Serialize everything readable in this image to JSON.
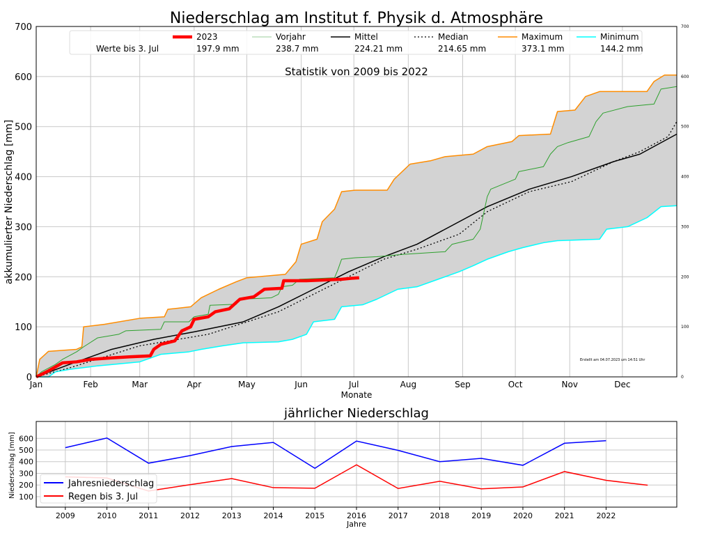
{
  "chart_data": [
    {
      "type": "line",
      "title": "Niederschlag am Institut f. Physik d. Atmosphäre",
      "subtitle": "Statistik von 2009 bis 2022",
      "xlabel": "Monate",
      "ylabel": "akkumulierter Niederschlag [mm]",
      "xlim": [
        0,
        365
      ],
      "ylim": [
        0,
        700
      ],
      "yticks": [
        0,
        100,
        200,
        300,
        400,
        500,
        600,
        700
      ],
      "xticks": [
        {
          "day": 0,
          "label": "Jan"
        },
        {
          "day": 31,
          "label": "Feb"
        },
        {
          "day": 59,
          "label": "Mar"
        },
        {
          "day": 90,
          "label": "Apr"
        },
        {
          "day": 120,
          "label": "May"
        },
        {
          "day": 151,
          "label": "Jun"
        },
        {
          "day": 181,
          "label": "Jul"
        },
        {
          "day": 212,
          "label": "Aug"
        },
        {
          "day": 243,
          "label": "Sep"
        },
        {
          "day": 273,
          "label": "Oct"
        },
        {
          "day": 304,
          "label": "Nov"
        },
        {
          "day": 334,
          "label": "Dec"
        }
      ],
      "grid": true,
      "legend": {
        "placement": "top",
        "row_label": "Werte bis  3. Jul",
        "entries": [
          {
            "name": "2023",
            "value": "197.9 mm"
          },
          {
            "name": "Vorjahr",
            "value": "238.7 mm"
          },
          {
            "name": "Mittel",
            "value": "224.21 mm"
          },
          {
            "name": "Median",
            "value": "214.65 mm"
          },
          {
            "name": "Maximum",
            "value": "373.1 mm"
          },
          {
            "name": "Minimum",
            "value": "144.2 mm"
          }
        ]
      },
      "annotation": "Erstellt am 04.07.2023 um 14:51 Uhr",
      "series": [
        {
          "name": "Maximum",
          "color": "#ff8c00",
          "width": 1.5,
          "points": [
            [
              0,
              0
            ],
            [
              2,
              35
            ],
            [
              7,
              51
            ],
            [
              23,
              55
            ],
            [
              26,
              60
            ],
            [
              27,
              100
            ],
            [
              39,
              105
            ],
            [
              59,
              117
            ],
            [
              73,
              120
            ],
            [
              75,
              135
            ],
            [
              88,
              140
            ],
            [
              94,
              158
            ],
            [
              104,
              175
            ],
            [
              114,
              190
            ],
            [
              120,
              198
            ],
            [
              142,
              205
            ],
            [
              148,
              230
            ],
            [
              151,
              265
            ],
            [
              160,
              275
            ],
            [
              163,
              310
            ],
            [
              170,
              335
            ],
            [
              174,
              370
            ],
            [
              182,
              373
            ],
            [
              200,
              373
            ],
            [
              204,
              395
            ],
            [
              213,
              425
            ],
            [
              225,
              432
            ],
            [
              233,
              440
            ],
            [
              249,
              445
            ],
            [
              257,
              460
            ],
            [
              271,
              470
            ],
            [
              275,
              482
            ],
            [
              293,
              485
            ],
            [
              297,
              530
            ],
            [
              307,
              533
            ],
            [
              313,
              560
            ],
            [
              321,
              570
            ],
            [
              348,
              570
            ],
            [
              352,
              590
            ],
            [
              358,
              603
            ],
            [
              365,
              603
            ]
          ]
        },
        {
          "name": "Minimum",
          "color": "#00ffff",
          "width": 1.5,
          "points": [
            [
              0,
              0
            ],
            [
              7,
              0
            ],
            [
              11,
              10
            ],
            [
              19,
              15
            ],
            [
              35,
              22
            ],
            [
              59,
              30
            ],
            [
              71,
              45
            ],
            [
              87,
              50
            ],
            [
              94,
              55
            ],
            [
              106,
              62
            ],
            [
              118,
              68
            ],
            [
              138,
              70
            ],
            [
              146,
              75
            ],
            [
              154,
              85
            ],
            [
              158,
              110
            ],
            [
              170,
              115
            ],
            [
              174,
              140
            ],
            [
              186,
              144
            ],
            [
              194,
              155
            ],
            [
              206,
              175
            ],
            [
              217,
              180
            ],
            [
              229,
              195
            ],
            [
              241,
              210
            ],
            [
              249,
              222
            ],
            [
              257,
              235
            ],
            [
              269,
              250
            ],
            [
              277,
              258
            ],
            [
              289,
              268
            ],
            [
              297,
              272
            ],
            [
              321,
              275
            ],
            [
              325,
              295
            ],
            [
              337,
              300
            ],
            [
              348,
              318
            ],
            [
              356,
              340
            ],
            [
              365,
              342
            ]
          ]
        },
        {
          "name": "Mittel",
          "color": "#000000",
          "width": 1.5,
          "points": [
            [
              0,
              0
            ],
            [
              19,
              25
            ],
            [
              43,
              55
            ],
            [
              67,
              75
            ],
            [
              90,
              90
            ],
            [
              118,
              110
            ],
            [
              138,
              140
            ],
            [
              158,
              175
            ],
            [
              178,
              210
            ],
            [
              198,
              240
            ],
            [
              217,
              265
            ],
            [
              241,
              310
            ],
            [
              257,
              340
            ],
            [
              281,
              375
            ],
            [
              305,
              400
            ],
            [
              329,
              430
            ],
            [
              344,
              445
            ],
            [
              365,
              485
            ]
          ]
        },
        {
          "name": "Median",
          "color": "#000000",
          "width": 1.3,
          "dash": "2,3",
          "points": [
            [
              0,
              0
            ],
            [
              19,
              18
            ],
            [
              59,
              62
            ],
            [
              98,
              85
            ],
            [
              138,
              130
            ],
            [
              158,
              165
            ],
            [
              178,
              200
            ],
            [
              198,
              235
            ],
            [
              217,
              255
            ],
            [
              241,
              285
            ],
            [
              257,
              330
            ],
            [
              281,
              370
            ],
            [
              305,
              390
            ],
            [
              329,
              430
            ],
            [
              344,
              450
            ],
            [
              360,
              480
            ],
            [
              365,
              510
            ]
          ]
        },
        {
          "name": "Vorjahr",
          "color": "#2ca02c",
          "width": 1,
          "points": [
            [
              0,
              0
            ],
            [
              3,
              10
            ],
            [
              11,
              25
            ],
            [
              15,
              35
            ],
            [
              23,
              50
            ],
            [
              27,
              60
            ],
            [
              35,
              78
            ],
            [
              47,
              85
            ],
            [
              51,
              92
            ],
            [
              71,
              95
            ],
            [
              73,
              110
            ],
            [
              87,
              110
            ],
            [
              90,
              120
            ],
            [
              98,
              125
            ],
            [
              99,
              143
            ],
            [
              114,
              145
            ],
            [
              116,
              155
            ],
            [
              134,
              158
            ],
            [
              138,
              165
            ],
            [
              140,
              180
            ],
            [
              146,
              183
            ],
            [
              150,
              195
            ],
            [
              170,
              198
            ],
            [
              172,
              215
            ],
            [
              174,
              235
            ],
            [
              182,
              238
            ],
            [
              194,
              240
            ],
            [
              210,
              245
            ],
            [
              233,
              250
            ],
            [
              237,
              265
            ],
            [
              249,
              275
            ],
            [
              253,
              295
            ],
            [
              257,
              360
            ],
            [
              259,
              375
            ],
            [
              273,
              395
            ],
            [
              275,
              410
            ],
            [
              289,
              420
            ],
            [
              293,
              445
            ],
            [
              297,
              460
            ],
            [
              303,
              468
            ],
            [
              315,
              480
            ],
            [
              319,
              510
            ],
            [
              323,
              527
            ],
            [
              337,
              540
            ],
            [
              352,
              545
            ],
            [
              356,
              575
            ],
            [
              365,
              580
            ]
          ]
        },
        {
          "name": "2023",
          "color": "#ff0000",
          "width": 4.5,
          "points": [
            [
              0,
              0
            ],
            [
              3,
              5
            ],
            [
              7,
              12
            ],
            [
              11,
              20
            ],
            [
              15,
              28
            ],
            [
              23,
              30
            ],
            [
              31,
              35
            ],
            [
              43,
              38
            ],
            [
              53,
              40
            ],
            [
              65,
              42
            ],
            [
              67,
              55
            ],
            [
              71,
              65
            ],
            [
              79,
              72
            ],
            [
              83,
              92
            ],
            [
              88,
              100
            ],
            [
              90,
              115
            ],
            [
              98,
              120
            ],
            [
              102,
              130
            ],
            [
              110,
              136
            ],
            [
              116,
              155
            ],
            [
              124,
              160
            ],
            [
              128,
              170
            ],
            [
              130,
              175
            ],
            [
              140,
              177
            ],
            [
              141,
              192
            ],
            [
              154,
              192
            ],
            [
              174,
              195
            ],
            [
              180,
              197
            ],
            [
              184,
              198
            ]
          ]
        }
      ]
    },
    {
      "type": "line",
      "title": "jährlicher Niederschlag",
      "xlabel": "Jahre",
      "ylabel": "Niederschlag [mm]",
      "x": [
        2009,
        2010,
        2011,
        2012,
        2013,
        2014,
        2015,
        2016,
        2017,
        2018,
        2019,
        2020,
        2021,
        2022,
        2023
      ],
      "xticks": [
        2009,
        2010,
        2011,
        2012,
        2013,
        2014,
        2015,
        2016,
        2017,
        2018,
        2019,
        2020,
        2021,
        2022
      ],
      "yticks": [
        100,
        200,
        300,
        400,
        500,
        600
      ],
      "xlim": [
        2008.3,
        2023.7
      ],
      "ylim": [
        10,
        745
      ],
      "grid": true,
      "legend": {
        "placement": "lower-left"
      },
      "series": [
        {
          "name": "Jahresniederschlag",
          "color": "#0000ff",
          "values": [
            520,
            603,
            387,
            452,
            530,
            565,
            343,
            577,
            497,
            400,
            428,
            369,
            558,
            580,
            null
          ]
        },
        {
          "name": "Regen bis  3. Jul",
          "color": "#ff0000",
          "values": [
            270,
            260,
            148,
            203,
            255,
            177,
            172,
            373,
            170,
            232,
            167,
            183,
            315,
            240,
            198
          ]
        }
      ]
    }
  ]
}
